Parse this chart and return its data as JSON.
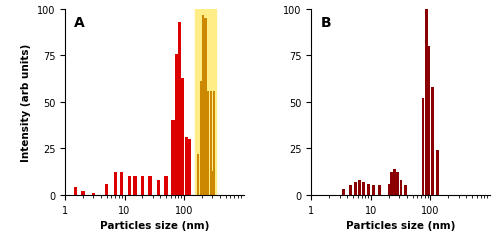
{
  "panel_A": {
    "label": "A",
    "bar_color": "#DD0000",
    "highlight_color": "#FFEE88",
    "orange_color": "#CC8800",
    "bars_red": [
      [
        1.5,
        4
      ],
      [
        2.0,
        2
      ],
      [
        3.0,
        1
      ],
      [
        5.0,
        6
      ],
      [
        7.0,
        12
      ],
      [
        9.0,
        12
      ],
      [
        12.0,
        10
      ],
      [
        15.0,
        10
      ],
      [
        20.0,
        10
      ],
      [
        27.0,
        10
      ],
      [
        37.0,
        8
      ],
      [
        50.0,
        10
      ],
      [
        65.0,
        40
      ],
      [
        75.0,
        76
      ],
      [
        85.0,
        93
      ],
      [
        95.0,
        63
      ],
      [
        110.0,
        31
      ],
      [
        125.0,
        30
      ]
    ],
    "bars_orange": [
      [
        170.0,
        22
      ],
      [
        190.0,
        61
      ],
      [
        210.0,
        97
      ],
      [
        230.0,
        95
      ],
      [
        255.0,
        56
      ],
      [
        280.0,
        56
      ],
      [
        305.0,
        13
      ],
      [
        320.0,
        56
      ]
    ],
    "highlight_xmin": 150,
    "highlight_xmax": 340
  },
  "panel_B": {
    "label": "B",
    "bar_color": "#8B0000",
    "bars": [
      [
        3.5,
        3
      ],
      [
        4.5,
        5
      ],
      [
        5.5,
        7
      ],
      [
        6.5,
        8
      ],
      [
        7.5,
        7
      ],
      [
        9.0,
        6
      ],
      [
        11.0,
        5
      ],
      [
        14.0,
        5
      ],
      [
        20.0,
        6
      ],
      [
        22.0,
        12
      ],
      [
        25.0,
        14
      ],
      [
        28.0,
        12
      ],
      [
        32.0,
        8
      ],
      [
        38.0,
        5
      ],
      [
        75.0,
        52
      ],
      [
        85.0,
        100
      ],
      [
        95.0,
        80
      ],
      [
        108.0,
        58
      ],
      [
        130.0,
        24
      ]
    ]
  },
  "xlim": [
    1,
    1000
  ],
  "ylim": [
    0,
    100
  ],
  "xlabel": "Particles size (nm)",
  "ylabel": "Intensity (arb units)",
  "yticks": [
    0,
    25,
    50,
    75,
    100
  ],
  "xticks": [
    1,
    10,
    100
  ],
  "xticklabels": [
    "1",
    "10",
    "100"
  ]
}
